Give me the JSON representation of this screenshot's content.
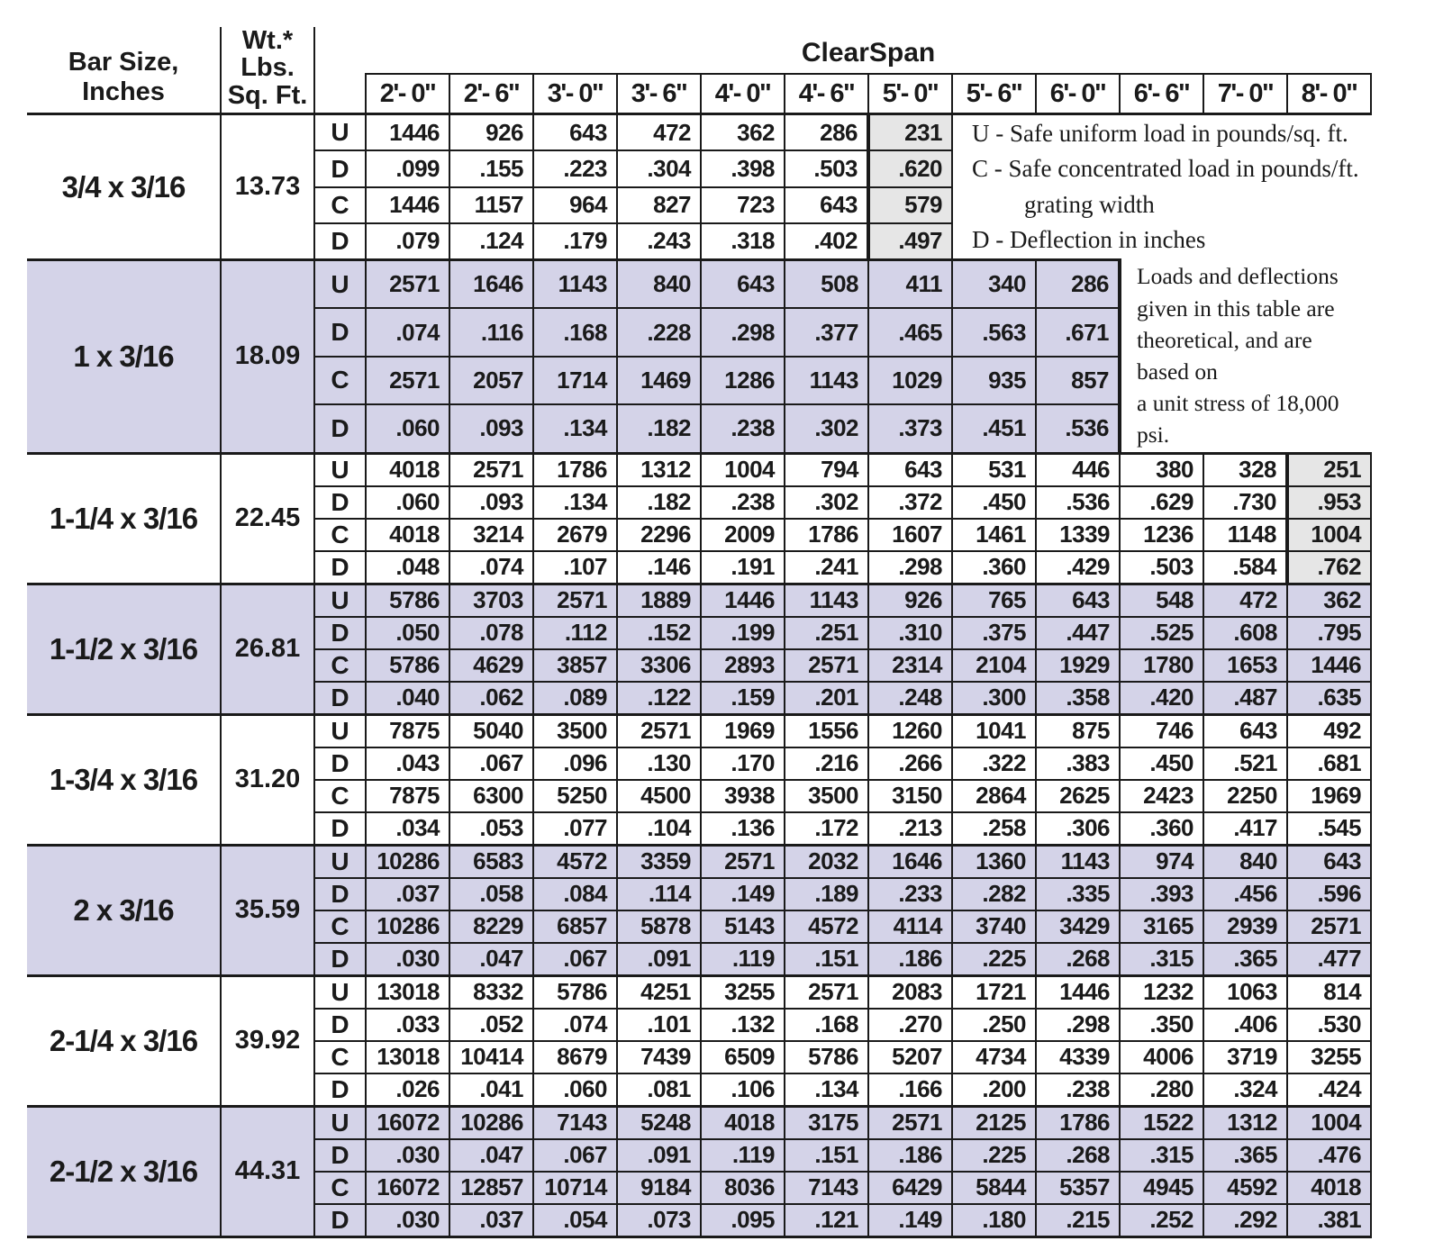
{
  "table": {
    "header": {
      "bar_size_line1": "Bar Size,",
      "bar_size_line2": "Inches",
      "wt_line1": "Wt.*",
      "wt_line2": "Lbs.",
      "wt_line3": "Sq. Ft.",
      "clearspan": "ClearSpan",
      "spans": [
        "2'- 0\"",
        "2'- 6\"",
        "3'- 0\"",
        "3'- 6\"",
        "4'- 0\"",
        "4'- 6\"",
        "5'- 0\"",
        "5'- 6\"",
        "6'- 0\"",
        "6'- 6\"",
        "7'- 0\"",
        "8'- 0\""
      ]
    },
    "row_labels": [
      "U",
      "D",
      "C",
      "D"
    ],
    "groups": [
      {
        "bar_size": "3/4 x 3/16",
        "weight": "13.73",
        "shade_col": 6,
        "side": "legend",
        "thick_right": false,
        "rows": [
          [
            "1446",
            "926",
            "643",
            "472",
            "362",
            "286",
            "231"
          ],
          [
            ".099",
            ".155",
            ".223",
            ".304",
            ".398",
            ".503",
            ".620"
          ],
          [
            "1446",
            "1157",
            "964",
            "827",
            "723",
            "643",
            "579"
          ],
          [
            ".079",
            ".124",
            ".179",
            ".243",
            ".318",
            ".402",
            ".497"
          ]
        ]
      },
      {
        "bar_size": "1 x 3/16",
        "weight": "18.09",
        "shade_col": null,
        "side": "note",
        "thick_right": true,
        "rows": [
          [
            "2571",
            "1646",
            "1143",
            "840",
            "643",
            "508",
            "411",
            "340",
            "286"
          ],
          [
            ".074",
            ".116",
            ".168",
            ".228",
            ".298",
            ".377",
            ".465",
            ".563",
            ".671"
          ],
          [
            "2571",
            "2057",
            "1714",
            "1469",
            "1286",
            "1143",
            "1029",
            "935",
            "857"
          ],
          [
            ".060",
            ".093",
            ".134",
            ".182",
            ".238",
            ".302",
            ".373",
            ".451",
            ".536"
          ]
        ]
      },
      {
        "bar_size": "1-1/4 x 3/16",
        "weight": "22.45",
        "shade_col": 11,
        "side": null,
        "thick_right": false,
        "rows": [
          [
            "4018",
            "2571",
            "1786",
            "1312",
            "1004",
            "794",
            "643",
            "531",
            "446",
            "380",
            "328",
            "251"
          ],
          [
            ".060",
            ".093",
            ".134",
            ".182",
            ".238",
            ".302",
            ".372",
            ".450",
            ".536",
            ".629",
            ".730",
            ".953"
          ],
          [
            "4018",
            "3214",
            "2679",
            "2296",
            "2009",
            "1786",
            "1607",
            "1461",
            "1339",
            "1236",
            "1148",
            "1004"
          ],
          [
            ".048",
            ".074",
            ".107",
            ".146",
            ".191",
            ".241",
            ".298",
            ".360",
            ".429",
            ".503",
            ".584",
            ".762"
          ]
        ]
      },
      {
        "bar_size": "1-1/2 x 3/16",
        "weight": "26.81",
        "shade_col": null,
        "side": null,
        "thick_right": false,
        "rows": [
          [
            "5786",
            "3703",
            "2571",
            "1889",
            "1446",
            "1143",
            "926",
            "765",
            "643",
            "548",
            "472",
            "362"
          ],
          [
            ".050",
            ".078",
            ".112",
            ".152",
            ".199",
            ".251",
            ".310",
            ".375",
            ".447",
            ".525",
            ".608",
            ".795"
          ],
          [
            "5786",
            "4629",
            "3857",
            "3306",
            "2893",
            "2571",
            "2314",
            "2104",
            "1929",
            "1780",
            "1653",
            "1446"
          ],
          [
            ".040",
            ".062",
            ".089",
            ".122",
            ".159",
            ".201",
            ".248",
            ".300",
            ".358",
            ".420",
            ".487",
            ".635"
          ]
        ]
      },
      {
        "bar_size": "1-3/4 x 3/16",
        "weight": "31.20",
        "shade_col": null,
        "side": null,
        "thick_right": false,
        "rows": [
          [
            "7875",
            "5040",
            "3500",
            "2571",
            "1969",
            "1556",
            "1260",
            "1041",
            "875",
            "746",
            "643",
            "492"
          ],
          [
            ".043",
            ".067",
            ".096",
            ".130",
            ".170",
            ".216",
            ".266",
            ".322",
            ".383",
            ".450",
            ".521",
            ".681"
          ],
          [
            "7875",
            "6300",
            "5250",
            "4500",
            "3938",
            "3500",
            "3150",
            "2864",
            "2625",
            "2423",
            "2250",
            "1969"
          ],
          [
            ".034",
            ".053",
            ".077",
            ".104",
            ".136",
            ".172",
            ".213",
            ".258",
            ".306",
            ".360",
            ".417",
            ".545"
          ]
        ]
      },
      {
        "bar_size": "2 x 3/16",
        "weight": "35.59",
        "shade_col": null,
        "side": null,
        "thick_right": false,
        "rows": [
          [
            "10286",
            "6583",
            "4572",
            "3359",
            "2571",
            "2032",
            "1646",
            "1360",
            "1143",
            "974",
            "840",
            "643"
          ],
          [
            ".037",
            ".058",
            ".084",
            ".114",
            ".149",
            ".189",
            ".233",
            ".282",
            ".335",
            ".393",
            ".456",
            ".596"
          ],
          [
            "10286",
            "8229",
            "6857",
            "5878",
            "5143",
            "4572",
            "4114",
            "3740",
            "3429",
            "3165",
            "2939",
            "2571"
          ],
          [
            ".030",
            ".047",
            ".067",
            ".091",
            ".119",
            ".151",
            ".186",
            ".225",
            ".268",
            ".315",
            ".365",
            ".477"
          ]
        ]
      },
      {
        "bar_size": "2-1/4 x 3/16",
        "weight": "39.92",
        "shade_col": null,
        "side": null,
        "thick_right": false,
        "rows": [
          [
            "13018",
            "8332",
            "5786",
            "4251",
            "3255",
            "2571",
            "2083",
            "1721",
            "1446",
            "1232",
            "1063",
            "814"
          ],
          [
            ".033",
            ".052",
            ".074",
            ".101",
            ".132",
            ".168",
            ".270",
            ".250",
            ".298",
            ".350",
            ".406",
            ".530"
          ],
          [
            "13018",
            "10414",
            "8679",
            "7439",
            "6509",
            "5786",
            "5207",
            "4734",
            "4339",
            "4006",
            "3719",
            "3255"
          ],
          [
            ".026",
            ".041",
            ".060",
            ".081",
            ".106",
            ".134",
            ".166",
            ".200",
            ".238",
            ".280",
            ".324",
            ".424"
          ]
        ]
      },
      {
        "bar_size": "2-1/2 x 3/16",
        "weight": "44.31",
        "shade_col": null,
        "side": null,
        "thick_right": false,
        "rows": [
          [
            "16072",
            "10286",
            "7143",
            "5248",
            "4018",
            "3175",
            "2571",
            "2125",
            "1786",
            "1522",
            "1312",
            "1004"
          ],
          [
            ".030",
            ".047",
            ".067",
            ".091",
            ".119",
            ".151",
            ".186",
            ".225",
            ".268",
            ".315",
            ".365",
            ".476"
          ],
          [
            "16072",
            "12857",
            "10714",
            "9184",
            "8036",
            "7143",
            "6429",
            "5844",
            "5357",
            "4945",
            "4592",
            "4018"
          ],
          [
            ".030",
            ".037",
            ".054",
            ".073",
            ".095",
            ".121",
            ".149",
            ".180",
            ".215",
            ".252",
            ".292",
            ".381"
          ]
        ]
      }
    ]
  },
  "legend": {
    "lines": [
      {
        "text": "U - Safe uniform load in pounds/sq. ft.",
        "indent": false
      },
      {
        "text": "C - Safe concentrated load in pounds/ft.",
        "indent": false
      },
      {
        "text": "grating width",
        "indent": true
      },
      {
        "text": "D - Deflection in inches",
        "indent": false
      }
    ]
  },
  "note": "Loads and deflections\ngiven in this table are\ntheoretical, and are based on\na unit stress of 18,000 psi.",
  "colors": {
    "zebra_row": "#d4d3e8",
    "shaded_cell": "#e6e6e6",
    "ink": "#1a1a1a"
  }
}
